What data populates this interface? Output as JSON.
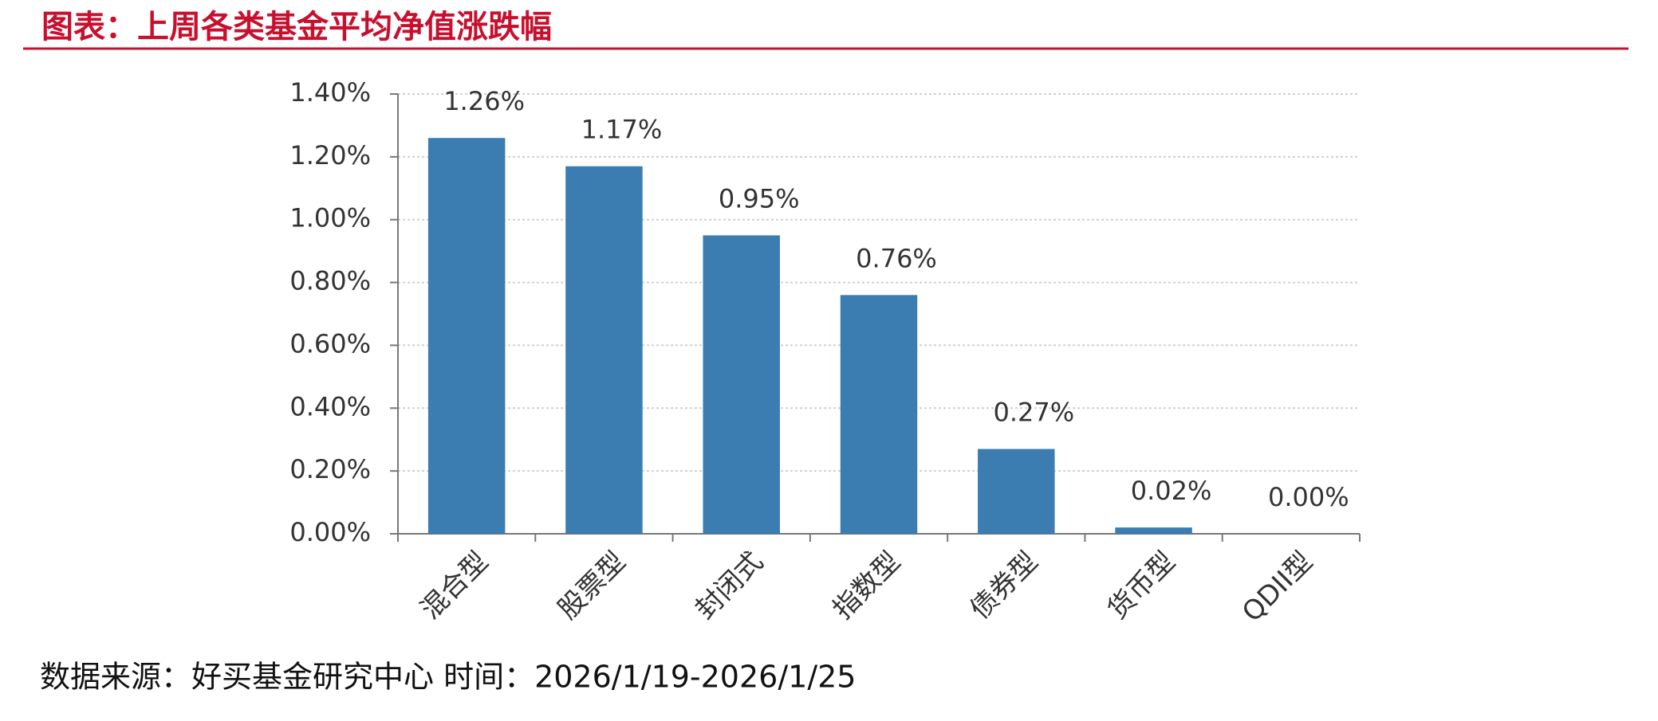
{
  "chart_data": {
    "type": "bar",
    "title": "图表：上周各类基金平均净值涨跌幅",
    "categories": [
      "混合型",
      "股票型",
      "封闭式",
      "指数型",
      "债券型",
      "货币型",
      "QDII型"
    ],
    "values": [
      1.26,
      1.17,
      0.95,
      0.76,
      0.27,
      0.02,
      0.0
    ],
    "value_labels": [
      "1.26%",
      "1.17%",
      "0.95%",
      "0.76%",
      "0.27%",
      "0.02%",
      "0.00%"
    ],
    "color": "#3b7db1",
    "ylim": [
      0,
      1.4
    ],
    "yticks": [
      {
        "value": 0,
        "label": "0.00%"
      },
      {
        "value": 0.2,
        "label": "0.20%"
      },
      {
        "value": 0.4,
        "label": "0.40%"
      },
      {
        "value": 0.6,
        "label": "0.60%"
      },
      {
        "value": 0.8,
        "label": "0.80%"
      },
      {
        "value": 1.0,
        "label": "1.00%"
      },
      {
        "value": 1.2,
        "label": "1.20%"
      },
      {
        "value": 1.4,
        "label": "1.40%"
      }
    ],
    "grid": true,
    "source": "数据来源：好买基金研究中心 时间：2026/1/19-2026/1/25"
  }
}
